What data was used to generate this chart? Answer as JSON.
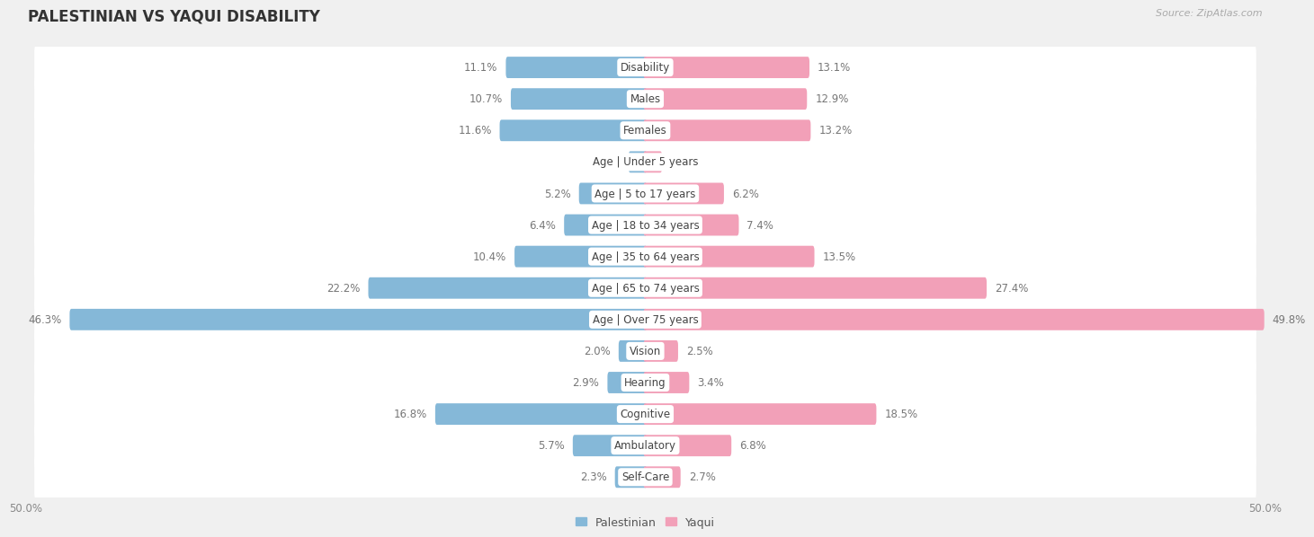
{
  "title": "PALESTINIAN VS YAQUI DISABILITY",
  "source": "Source: ZipAtlas.com",
  "categories": [
    "Disability",
    "Males",
    "Females",
    "Age | Under 5 years",
    "Age | 5 to 17 years",
    "Age | 18 to 34 years",
    "Age | 35 to 64 years",
    "Age | 65 to 74 years",
    "Age | Over 75 years",
    "Vision",
    "Hearing",
    "Cognitive",
    "Ambulatory",
    "Self-Care"
  ],
  "palestinian_values": [
    11.1,
    10.7,
    11.6,
    1.2,
    5.2,
    6.4,
    10.4,
    22.2,
    46.3,
    2.0,
    2.9,
    16.8,
    5.7,
    2.3
  ],
  "yaqui_values": [
    13.1,
    12.9,
    13.2,
    1.2,
    6.2,
    7.4,
    13.5,
    27.4,
    49.8,
    2.5,
    3.4,
    18.5,
    6.8,
    2.7
  ],
  "palestinian_color": "#85b8d8",
  "yaqui_color": "#f2a0b8",
  "palestinian_color_dark": "#5a9ec7",
  "yaqui_color_dark": "#e8708f",
  "axis_max": 50.0,
  "background_color": "#f0f0f0",
  "row_bg_color": "#ffffff",
  "title_fontsize": 12,
  "label_fontsize": 8.5,
  "value_fontsize": 8.5,
  "tick_fontsize": 8.5,
  "source_fontsize": 8,
  "legend_fontsize": 9
}
